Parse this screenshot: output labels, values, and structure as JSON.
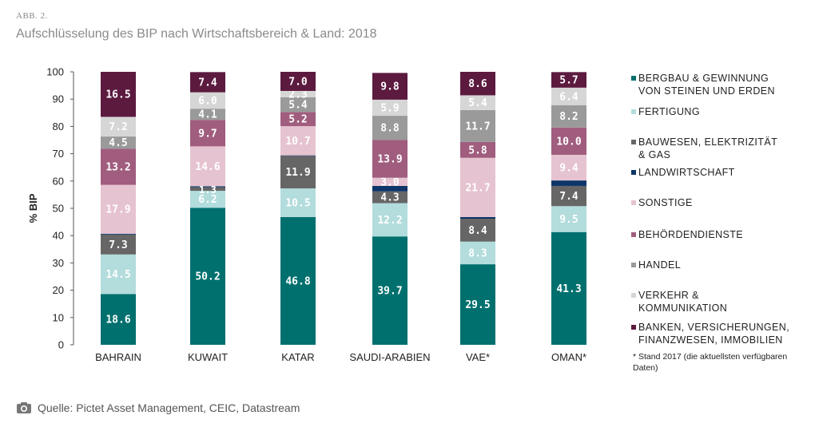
{
  "header": {
    "fig_label": "ABB. 2.",
    "title": "Aufschlüsselung des BIP nach Wirtschaftsbereich & Land: 2018"
  },
  "source": {
    "text": "Quelle: Pictet Asset Management, CEIC, Datastream",
    "icon": "camera-icon"
  },
  "footnote": "* Stand 2017 (die aktuellsten verfügbaren Daten)",
  "chart_data": {
    "type": "bar",
    "stacked": true,
    "title": "Aufschlüsselung des BIP nach Wirtschaftsbereich & Land: 2018",
    "ylabel": "% BIP",
    "xlabel": "",
    "ylim": [
      0,
      100
    ],
    "yticks": [
      0,
      10,
      20,
      30,
      40,
      50,
      60,
      70,
      80,
      90,
      100
    ],
    "grid": false,
    "legend_position": "right",
    "categories": [
      "BAHRAIN",
      "KUWAIT",
      "KATAR",
      "SAUDI-ARABIEN",
      "VAE*",
      "OMAN*"
    ],
    "series": [
      {
        "name": "BERGBAU & GEWINNUNG\nVON STEINEN UND ERDEN",
        "color": "#00706e",
        "label_color": "#ffffff",
        "values": [
          18.6,
          50.2,
          46.8,
          39.7,
          29.5,
          41.3
        ],
        "labels": [
          "18.6",
          "50.2",
          "46.8",
          "39.7",
          "29.5",
          "41.3"
        ]
      },
      {
        "name": "FERTIGUNG",
        "color": "#b3dcdc",
        "label_color": "#ffffff",
        "values": [
          14.5,
          6.2,
          10.5,
          12.2,
          8.3,
          9.5
        ],
        "labels": [
          "14.5",
          "6.2",
          "10.5",
          "12.2",
          "8.3",
          "9.5"
        ]
      },
      {
        "name": "BAUWESEN, ELEKTRIZITÄT\n& GAS",
        "color": "#666666",
        "label_color": "#ffffff",
        "values": [
          7.3,
          1.3,
          11.9,
          4.3,
          8.4,
          7.4
        ],
        "labels": [
          "7.3",
          "",
          "11.9",
          "4.3",
          "8.4",
          "7.4"
        ]
      },
      {
        "name": "LANDWIRTSCHAFT",
        "color": "#0d3568",
        "label_color": "#ffffff",
        "values": [
          0.3,
          0.4,
          0.2,
          2.0,
          0.6,
          2.0
        ],
        "labels": [
          "",
          "",
          "",
          "",
          "",
          ""
        ]
      },
      {
        "name": "SONSTIGE",
        "color": "#e6c3d0",
        "label_color": "#ffffff",
        "values": [
          17.9,
          14.6,
          10.7,
          3.0,
          21.7,
          9.4
        ],
        "labels": [
          "17.9",
          "14.6",
          "10.7",
          "3.0",
          "21.7",
          "9.4"
        ]
      },
      {
        "name": "BEHÖRDENDIENSTE",
        "color": "#a05d7e",
        "label_color": "#ffffff",
        "values": [
          13.2,
          9.7,
          5.2,
          13.9,
          5.8,
          10.0
        ],
        "labels": [
          "13.2",
          "9.7",
          "5.2",
          "13.9",
          "5.8",
          "10.0"
        ]
      },
      {
        "name": "HANDEL",
        "color": "#9a9a9a",
        "label_color": "#ffffff",
        "values": [
          4.5,
          4.1,
          5.4,
          8.8,
          11.7,
          8.2
        ],
        "labels": [
          "4.5",
          "4.1",
          "5.4",
          "8.8",
          "11.7",
          "8.2"
        ]
      },
      {
        "name": "VERKEHR &\nKOMMUNIKATION",
        "color": "#d6d6d6",
        "label_color": "#ffffff",
        "values": [
          7.2,
          6.0,
          2.3,
          5.9,
          5.4,
          6.4
        ],
        "labels": [
          "7.2",
          "6.0",
          "2.3",
          "5.9",
          "5.4",
          "6.4"
        ]
      },
      {
        "name": "BANKEN, VERSICHERUNGEN,\nFINANZWESEN, IMMOBILIEN",
        "color": "#5c1a3f",
        "label_color": "#ffffff",
        "values": [
          16.5,
          7.4,
          7.0,
          9.8,
          8.6,
          5.7
        ],
        "labels": [
          "16.5",
          "7.4",
          "7.0",
          "9.8",
          "8.6",
          "5.7"
        ]
      }
    ],
    "annotations": [
      "1.3"
    ]
  }
}
